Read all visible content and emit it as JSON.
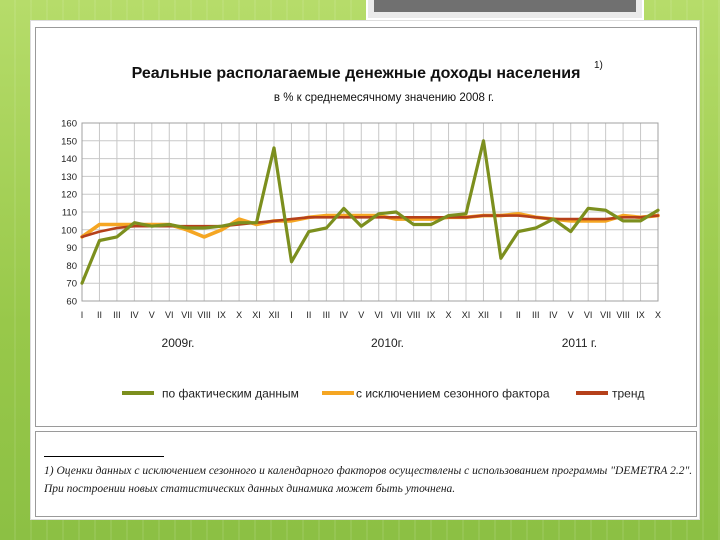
{
  "slide": {
    "footnote": "1) Оценки данных с исключением сезонного и календарного факторов осуществлены с использованием программы \"DEMETRA 2.2\". При построении новых статистических данных динамика может быть уточнена."
  },
  "colors": {
    "actual": "#7c8f1e",
    "seasonal": "#f5a623",
    "trend": "#b5401a"
  },
  "chart_data": {
    "type": "line",
    "title": "Реальные располагаемые денежные доходы населения",
    "title_sup": "1)",
    "subtitle": "в % к среднемесячному значению 2008 г.",
    "ylim": [
      60,
      160
    ],
    "yticks": [
      "60",
      "70",
      "80",
      "90",
      "100",
      "110",
      "120",
      "130",
      "140",
      "150",
      "160"
    ],
    "x": [
      "I",
      "II",
      "III",
      "IV",
      "V",
      "VI",
      "VII",
      "VIII",
      "IX",
      "X",
      "XI",
      "XII",
      "I",
      "II",
      "III",
      "IV",
      "V",
      "VI",
      "VII",
      "VIII",
      "IX",
      "X",
      "XI",
      "XII",
      "I",
      "II",
      "III",
      "IV",
      "V",
      "VI",
      "VII",
      "VIII",
      "IX",
      "X"
    ],
    "years": [
      {
        "label": "2009г.",
        "start": 0,
        "end": 11
      },
      {
        "label": "2010г.",
        "start": 12,
        "end": 23
      },
      {
        "label": "2011 г.",
        "start": 24,
        "end": 33
      }
    ],
    "grid": true,
    "legend_position": "bottom",
    "series": [
      {
        "name": "по фактическим данным",
        "values": [
          70,
          94,
          96,
          104,
          102,
          103,
          101,
          101,
          102,
          104,
          104,
          146,
          82,
          99,
          101,
          112,
          102,
          109,
          110,
          103,
          103,
          108,
          109,
          150,
          84,
          99,
          101,
          106,
          99,
          112,
          111,
          105,
          105,
          111
        ]
      },
      {
        "name": "с исключением сезонного фактора",
        "values": [
          96,
          103,
          103,
          103,
          103,
          103,
          100,
          96,
          100,
          106,
          103,
          105,
          105,
          107,
          108,
          108,
          108,
          108,
          106,
          106,
          106,
          107,
          107,
          108,
          108,
          109,
          107,
          106,
          105,
          105,
          105,
          108,
          107,
          108
        ]
      },
      {
        "name": "тренд",
        "values": [
          96,
          99,
          101,
          102,
          102,
          102,
          102,
          102,
          102,
          103,
          104,
          105,
          106,
          107,
          107,
          107,
          107,
          107,
          107,
          107,
          107,
          107,
          107,
          108,
          108,
          108,
          107,
          106,
          106,
          106,
          106,
          107,
          107,
          108
        ]
      }
    ]
  }
}
